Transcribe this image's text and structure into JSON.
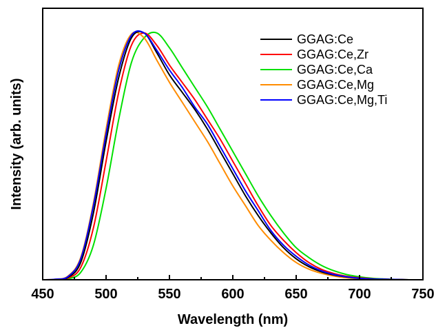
{
  "chart_data": {
    "type": "line",
    "title": "",
    "xlabel": "Wavelength (nm)",
    "ylabel": "Intensity (arb. units)",
    "xlim": [
      450,
      750
    ],
    "ylim": [
      0,
      1.1
    ],
    "x_ticks": [
      "450",
      "500",
      "550",
      "600",
      "650",
      "700",
      "750"
    ],
    "y_ticks_shown": false,
    "grid": false,
    "legend_position": "top-right",
    "series": [
      {
        "name": "GGAG:Ce",
        "color": "#000000",
        "x": [
          450,
          460,
          470,
          480,
          490,
          500,
          510,
          520,
          530,
          540,
          550,
          560,
          570,
          580,
          590,
          600,
          610,
          620,
          630,
          640,
          650,
          660,
          670,
          680,
          690,
          700,
          710,
          720,
          730,
          740,
          750
        ],
        "y": [
          0.0,
          0.0,
          0.01,
          0.07,
          0.27,
          0.56,
          0.82,
          0.98,
          1.0,
          0.92,
          0.83,
          0.76,
          0.69,
          0.61,
          0.52,
          0.43,
          0.34,
          0.26,
          0.19,
          0.13,
          0.085,
          0.053,
          0.032,
          0.019,
          0.011,
          0.006,
          0.003,
          0.002,
          0.001,
          0.0,
          0.0
        ]
      },
      {
        "name": "GGAG:Ce,Zr",
        "color": "#ff0000",
        "x": [
          450,
          460,
          470,
          480,
          490,
          500,
          510,
          520,
          530,
          540,
          550,
          560,
          570,
          580,
          590,
          600,
          610,
          620,
          630,
          640,
          650,
          660,
          670,
          680,
          690,
          700,
          710,
          720,
          730,
          740,
          750
        ],
        "y": [
          0.0,
          0.0,
          0.007,
          0.05,
          0.21,
          0.48,
          0.76,
          0.95,
          1.0,
          0.95,
          0.87,
          0.8,
          0.73,
          0.65,
          0.57,
          0.48,
          0.39,
          0.3,
          0.22,
          0.16,
          0.11,
          0.07,
          0.042,
          0.025,
          0.014,
          0.008,
          0.004,
          0.002,
          0.001,
          0.0,
          0.0
        ]
      },
      {
        "name": "GGAG:Ce,Ca",
        "color": "#00e000",
        "x": [
          450,
          460,
          470,
          480,
          490,
          500,
          510,
          520,
          530,
          540,
          550,
          560,
          570,
          580,
          590,
          600,
          610,
          620,
          630,
          640,
          650,
          660,
          670,
          680,
          690,
          700,
          710,
          720,
          730,
          740,
          750
        ],
        "y": [
          0.0,
          0.0,
          0.004,
          0.03,
          0.14,
          0.37,
          0.65,
          0.88,
          0.98,
          1.0,
          0.94,
          0.86,
          0.78,
          0.7,
          0.61,
          0.52,
          0.43,
          0.34,
          0.26,
          0.19,
          0.13,
          0.09,
          0.058,
          0.036,
          0.021,
          0.012,
          0.006,
          0.003,
          0.001,
          0.0,
          0.0
        ]
      },
      {
        "name": "GGAG:Ce,Mg",
        "color": "#ff8c00",
        "x": [
          450,
          460,
          470,
          480,
          490,
          500,
          510,
          520,
          530,
          540,
          550,
          560,
          570,
          580,
          590,
          600,
          610,
          620,
          630,
          640,
          650,
          660,
          670,
          680,
          690,
          700,
          710,
          720,
          730,
          740,
          750
        ],
        "y": [
          0.0,
          0.002,
          0.015,
          0.09,
          0.31,
          0.61,
          0.87,
          0.995,
          0.98,
          0.89,
          0.8,
          0.72,
          0.64,
          0.56,
          0.47,
          0.38,
          0.3,
          0.22,
          0.16,
          0.11,
          0.07,
          0.043,
          0.026,
          0.015,
          0.008,
          0.004,
          0.002,
          0.001,
          0.0,
          0.0,
          0.0
        ]
      },
      {
        "name": "GGAG:Ce,Mg,Ti",
        "color": "#0000ff",
        "x": [
          450,
          460,
          470,
          480,
          490,
          500,
          510,
          520,
          530,
          540,
          550,
          560,
          570,
          580,
          590,
          600,
          610,
          620,
          630,
          640,
          650,
          660,
          670,
          680,
          690,
          700,
          710,
          720,
          730,
          740,
          750
        ],
        "y": [
          0.0,
          0.002,
          0.013,
          0.085,
          0.3,
          0.59,
          0.85,
          0.99,
          1.0,
          0.93,
          0.85,
          0.78,
          0.7,
          0.63,
          0.54,
          0.45,
          0.36,
          0.28,
          0.2,
          0.14,
          0.095,
          0.06,
          0.036,
          0.021,
          0.012,
          0.006,
          0.003,
          0.002,
          0.001,
          0.0,
          0.0
        ]
      }
    ]
  }
}
